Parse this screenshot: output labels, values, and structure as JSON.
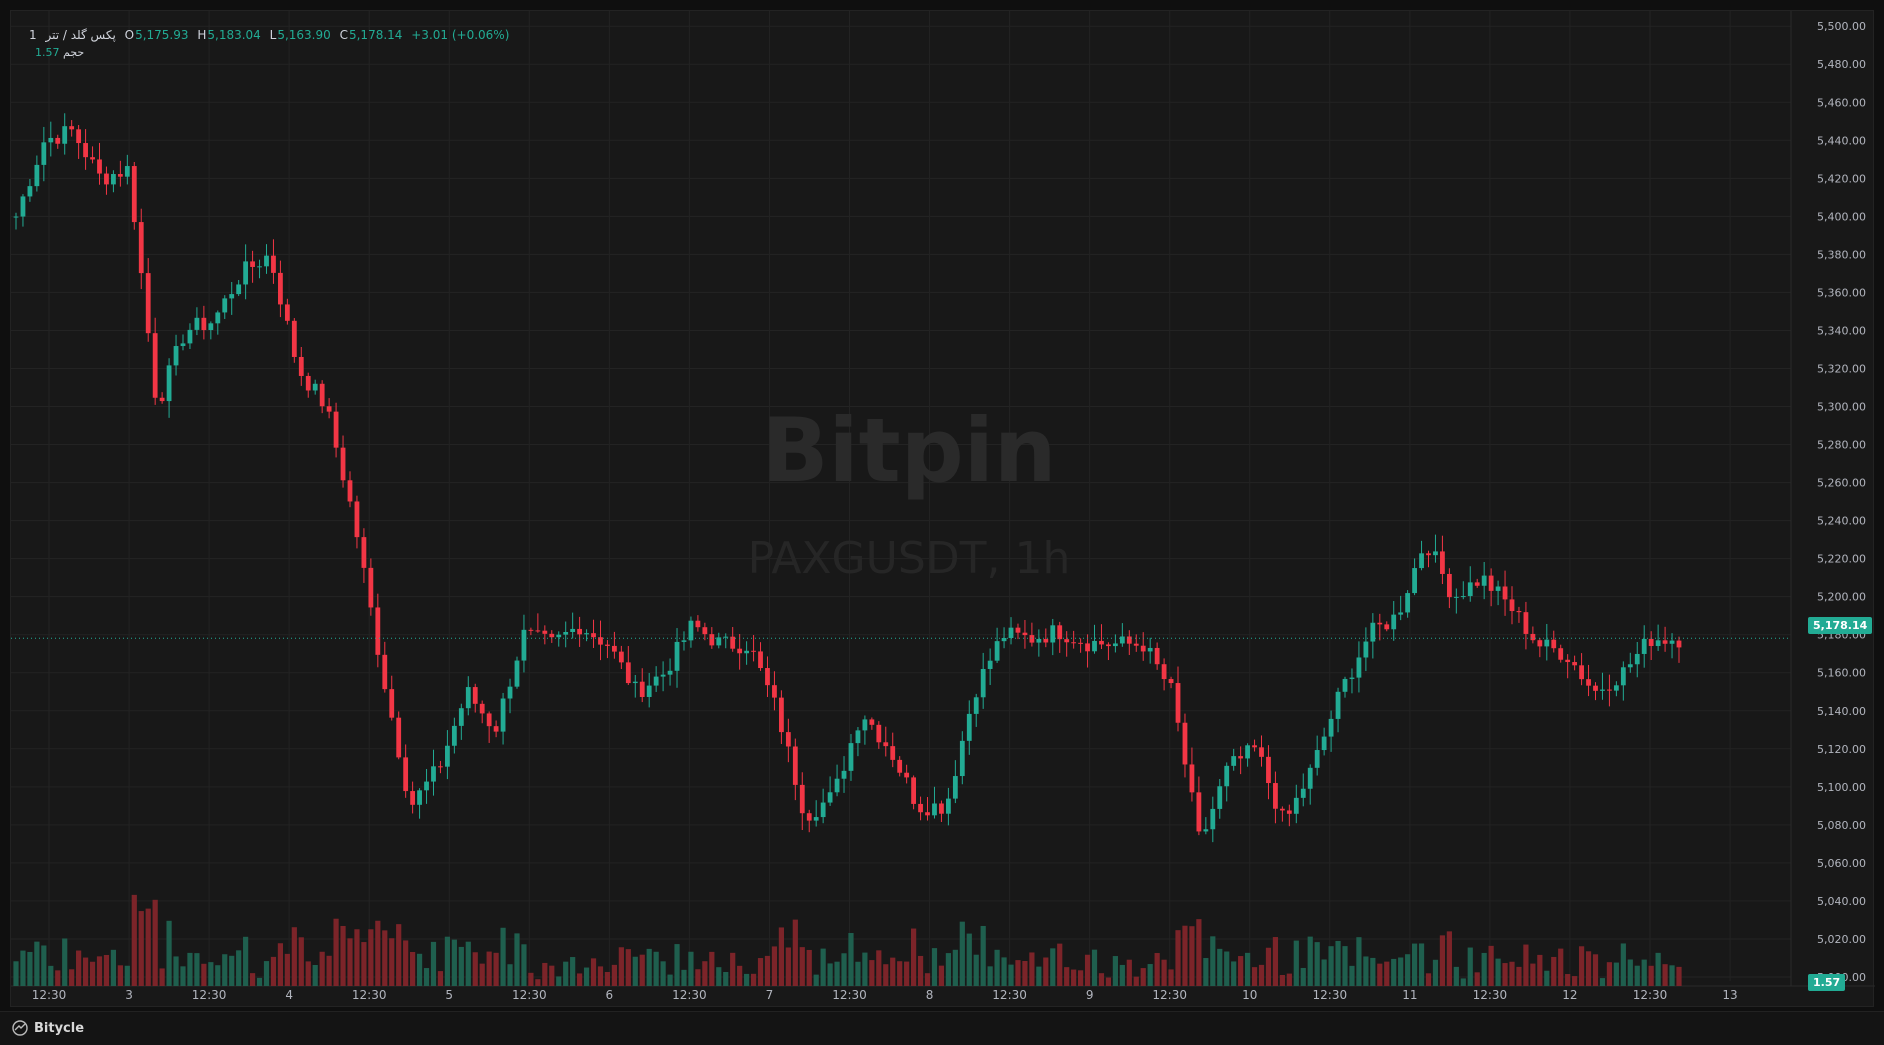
{
  "legend": {
    "symbol": "پکس گلد / تتر",
    "interval": "1",
    "open_label": "O",
    "open": "5,175.93",
    "high_label": "H",
    "high": "5,183.04",
    "low_label": "L",
    "low": "5,163.90",
    "close_label": "C",
    "close": "5,178.14",
    "change": "+3.01 (+0.06%)"
  },
  "volume_legend": {
    "label": "حجم",
    "value": "1.57"
  },
  "watermark": {
    "brand": "Bitpin",
    "symbol": "PAXGUSDT, 1h"
  },
  "price_axis": {
    "ticks": [
      "5,500.00",
      "5,480.00",
      "5,460.00",
      "5,440.00",
      "5,420.00",
      "5,400.00",
      "5,380.00",
      "5,360.00",
      "5,340.00",
      "5,320.00",
      "5,300.00",
      "5,280.00",
      "5,260.00",
      "5,240.00",
      "5,220.00",
      "5,200.00",
      "5,180.00",
      "5,160.00",
      "5,140.00",
      "5,120.00",
      "5,100.00",
      "5,080.00",
      "5,060.00",
      "5,040.00",
      "5,020.00",
      "5,000.00"
    ],
    "current_price": "5,178.14",
    "volume_tag": "1.57"
  },
  "time_axis": {
    "ticks": [
      "12:30",
      "3",
      "12:30",
      "4",
      "12:30",
      "5",
      "12:30",
      "6",
      "12:30",
      "7",
      "12:30",
      "8",
      "12:30",
      "9",
      "12:30",
      "10",
      "12:30",
      "11",
      "12:30",
      "12",
      "12:30",
      "13"
    ]
  },
  "colors": {
    "up": "#22ab94",
    "down": "#f23645",
    "up_volume": "#1f5f4e",
    "down_volume": "#7c2429",
    "grid": "#232323"
  },
  "footer": {
    "brand": "Bitycle",
    "icon": "bitycle-logo-icon"
  },
  "chart_data": {
    "type": "candlestick",
    "y_range": [
      4990,
      5508
    ],
    "series": [
      {
        "name": "PAXGUSDT",
        "ohlc_keyframes": [
          [
            5400,
            5390
          ],
          [
            5440,
            5430
          ],
          [
            5445,
            5455
          ],
          [
            5420,
            5410
          ],
          [
            5425,
            5430
          ],
          [
            5300,
            5320
          ],
          [
            5340,
            5350
          ],
          [
            5345,
            5335
          ],
          [
            5370,
            5380
          ],
          [
            5380,
            5370
          ],
          [
            5320,
            5310
          ],
          [
            5300,
            5280
          ],
          [
            5240,
            5220
          ],
          [
            5160,
            5165
          ],
          [
            5090,
            5080
          ],
          [
            5110,
            5120
          ],
          [
            5150,
            5140
          ],
          [
            5130,
            5120
          ],
          [
            5180,
            5175
          ],
          [
            5175,
            5180
          ],
          [
            5185,
            5190
          ],
          [
            5175,
            5170
          ],
          [
            5150,
            5155
          ],
          [
            5160,
            5165
          ],
          [
            5185,
            5190
          ],
          [
            5175,
            5170
          ],
          [
            5175,
            5180
          ],
          [
            5140,
            5130
          ],
          [
            5085,
            5090
          ],
          [
            5095,
            5100
          ],
          [
            5140,
            5135
          ],
          [
            5120,
            5115
          ],
          [
            5090,
            5085
          ],
          [
            5090,
            5095
          ],
          [
            5150,
            5155
          ],
          [
            5180,
            5178
          ],
          [
            5178,
            5180
          ],
          [
            5182,
            5179
          ],
          [
            5176,
            5175
          ],
          [
            5175,
            5176
          ],
          [
            5175,
            5172
          ],
          [
            5150,
            5145
          ],
          [
            5070,
            5060
          ],
          [
            5110,
            5115
          ],
          [
            5120,
            5115
          ],
          [
            5080,
            5090
          ],
          [
            5110,
            5115
          ],
          [
            5150,
            5155
          ],
          [
            5180,
            5178
          ],
          [
            5190,
            5195
          ],
          [
            5230,
            5235
          ],
          [
            5200,
            5195
          ],
          [
            5210,
            5215
          ],
          [
            5195,
            5190
          ],
          [
            5175,
            5170
          ],
          [
            5170,
            5175
          ],
          [
            5150,
            5140
          ],
          [
            5160,
            5165
          ],
          [
            5178,
            5180
          ],
          [
            5178,
            5178
          ]
        ]
      }
    ],
    "volume": {
      "max": 5.0,
      "last": 1.57
    }
  }
}
